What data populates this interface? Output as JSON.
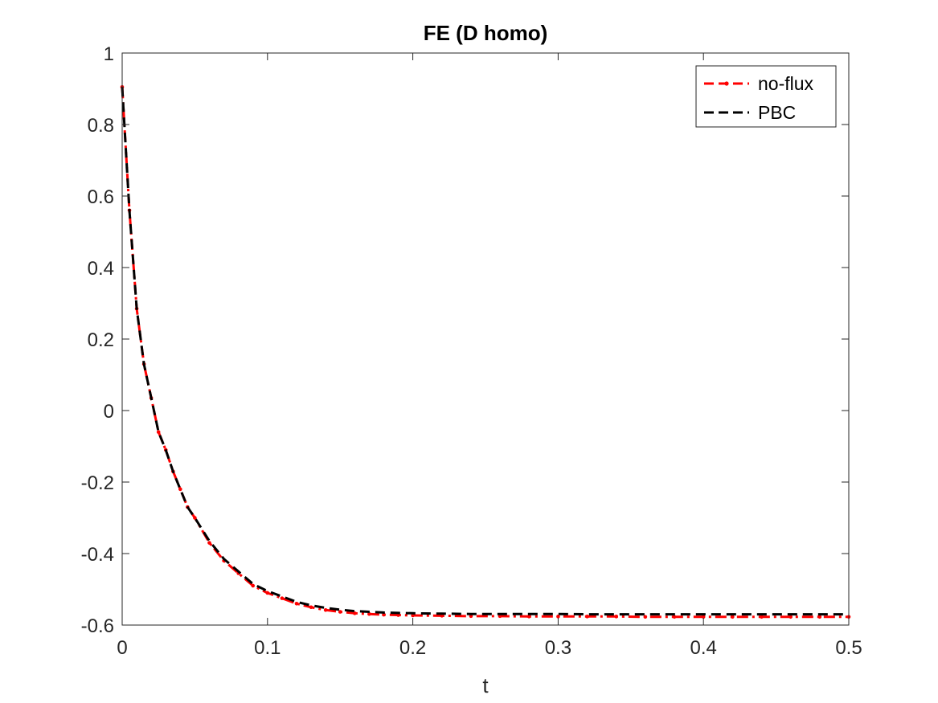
{
  "chart_data": {
    "type": "line",
    "title": "FE (D homo)",
    "xlabel": "t",
    "ylabel": "",
    "xlim": [
      0,
      0.5
    ],
    "ylim": [
      -0.6,
      1
    ],
    "xticks": [
      0,
      0.1,
      0.2,
      0.3,
      0.4,
      0.5
    ],
    "xtick_labels": [
      "0",
      "0.1",
      "0.2",
      "0.3",
      "0.4",
      "0.5"
    ],
    "yticks": [
      -0.6,
      -0.4,
      -0.2,
      0,
      0.2,
      0.4,
      0.6,
      0.8,
      1
    ],
    "ytick_labels": [
      "-0.6",
      "-0.4",
      "-0.2",
      "0",
      "0.2",
      "0.4",
      "0.6",
      "0.8",
      "1"
    ],
    "grid": false,
    "legend_position": "top-right",
    "series": [
      {
        "name": "no-flux",
        "color": "#ff0000",
        "style": "dash-dot with point markers",
        "x": [
          0,
          0.005,
          0.01,
          0.015,
          0.02,
          0.025,
          0.03,
          0.035,
          0.04,
          0.045,
          0.05,
          0.06,
          0.07,
          0.08,
          0.09,
          0.1,
          0.11,
          0.12,
          0.13,
          0.14,
          0.15,
          0.16,
          0.17,
          0.18,
          0.19,
          0.2,
          0.22,
          0.24,
          0.26,
          0.28,
          0.3,
          0.32,
          0.34,
          0.36,
          0.38,
          0.4,
          0.42,
          0.44,
          0.46,
          0.48,
          0.5
        ],
        "y": [
          0.905,
          0.56,
          0.285,
          0.13,
          0.035,
          -0.06,
          -0.11,
          -0.17,
          -0.22,
          -0.27,
          -0.3,
          -0.37,
          -0.42,
          -0.455,
          -0.49,
          -0.51,
          -0.525,
          -0.54,
          -0.55,
          -0.558,
          -0.563,
          -0.567,
          -0.569,
          -0.571,
          -0.572,
          -0.573,
          -0.574,
          -0.575,
          -0.575,
          -0.576,
          -0.576,
          -0.576,
          -0.576,
          -0.577,
          -0.577,
          -0.577,
          -0.577,
          -0.577,
          -0.577,
          -0.577,
          -0.577
        ]
      },
      {
        "name": "PBC",
        "color": "#000000",
        "style": "dashed",
        "x": [
          0,
          0.005,
          0.01,
          0.015,
          0.02,
          0.025,
          0.03,
          0.035,
          0.04,
          0.045,
          0.05,
          0.06,
          0.07,
          0.08,
          0.09,
          0.1,
          0.11,
          0.12,
          0.13,
          0.14,
          0.15,
          0.16,
          0.17,
          0.18,
          0.19,
          0.2,
          0.22,
          0.24,
          0.26,
          0.28,
          0.3,
          0.32,
          0.34,
          0.36,
          0.38,
          0.4,
          0.42,
          0.44,
          0.46,
          0.48,
          0.5
        ],
        "y": [
          0.905,
          0.56,
          0.285,
          0.13,
          0.035,
          -0.06,
          -0.11,
          -0.17,
          -0.22,
          -0.27,
          -0.3,
          -0.365,
          -0.415,
          -0.45,
          -0.485,
          -0.505,
          -0.52,
          -0.535,
          -0.545,
          -0.552,
          -0.557,
          -0.561,
          -0.563,
          -0.565,
          -0.566,
          -0.567,
          -0.568,
          -0.569,
          -0.569,
          -0.569,
          -0.569,
          -0.57,
          -0.57,
          -0.57,
          -0.57,
          -0.57,
          -0.57,
          -0.57,
          -0.57,
          -0.57,
          -0.57
        ]
      }
    ]
  }
}
